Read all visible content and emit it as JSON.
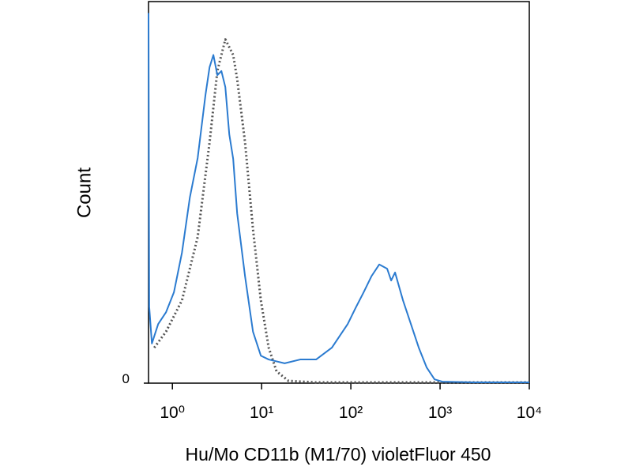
{
  "chart_data": {
    "type": "line",
    "x_label": "Hu/Mo CD11b (M1/70) violetFluor 450",
    "y_label": "Count",
    "xscale": "log",
    "xlim": [
      0.54,
      10000
    ],
    "xticks": [
      {
        "value": 1,
        "label": "10⁰"
      },
      {
        "value": 10,
        "label": "10¹"
      },
      {
        "value": 100,
        "label": "10²"
      },
      {
        "value": 1000,
        "label": "10³"
      },
      {
        "value": 10000,
        "label": "10⁴"
      }
    ],
    "ylim": [
      0,
      100
    ],
    "yticks": [
      0
    ],
    "grid": false,
    "series": [
      {
        "color": "#2b7bd0",
        "dash": false,
        "x": [
          0.54,
          0.55,
          0.589,
          0.693,
          0.849,
          1.04,
          1.28,
          1.57,
          1.92,
          2.35,
          2.61,
          2.88,
          3.19,
          3.54,
          3.92,
          4.34,
          4.8,
          5.32,
          6.52,
          8.0,
          9.8,
          12.0,
          18.1,
          27.1,
          40.8,
          61.3,
          75.2,
          92.2,
          113,
          139,
          170,
          208,
          255,
          283,
          313,
          384,
          471,
          577,
          708,
          867,
          1060,
          2400,
          10000
        ],
        "values": [
          97,
          20,
          10.4,
          15.5,
          18.6,
          23.8,
          34.2,
          48.7,
          59.0,
          75.6,
          82.8,
          86.0,
          80.7,
          81.8,
          77.6,
          65.2,
          58.8,
          44.5,
          28.0,
          13.5,
          7.2,
          6.2,
          5.2,
          6.2,
          6.2,
          9.3,
          12.4,
          15.5,
          19.7,
          23.8,
          28.0,
          31.1,
          30.0,
          26.9,
          29.0,
          21.7,
          15.5,
          9.3,
          4.1,
          1.0,
          0.4,
          0.2,
          0.2
        ]
      },
      {
        "color": "#555555",
        "dash": true,
        "x": [
          0.626,
          0.849,
          1.28,
          1.92,
          2.61,
          3.19,
          3.92,
          4.8,
          5.32,
          6.52,
          8.0,
          9.8,
          12.0,
          14.7,
          20.0,
          40.8,
          10000
        ],
        "values": [
          9.3,
          13.5,
          21.7,
          38.3,
          63.1,
          81.8,
          90.1,
          86.0,
          79.7,
          63.1,
          40.4,
          21.7,
          9.3,
          3.1,
          0.6,
          0.2,
          0.2
        ]
      }
    ]
  }
}
